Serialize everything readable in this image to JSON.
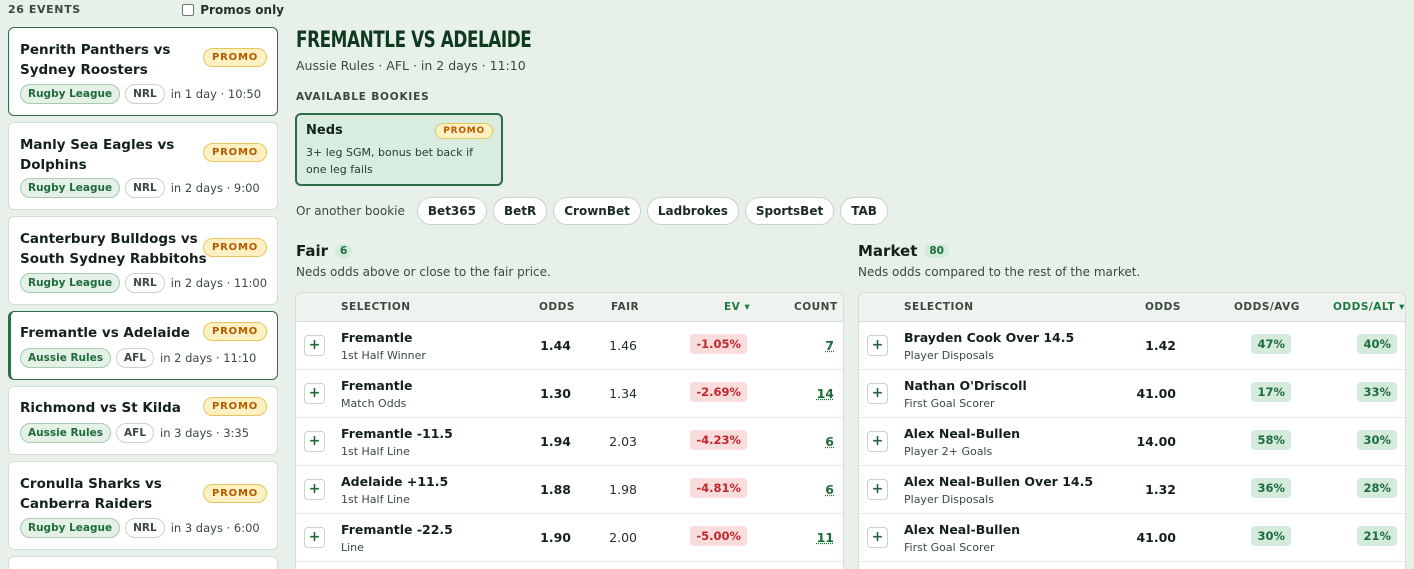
{
  "sidebar": {
    "events_count": "26 EVENTS",
    "promos_only_label": "Promos only",
    "events": [
      {
        "title": "Penrith Panthers vs Sydney Roosters",
        "promo": "PROMO",
        "sport": "Rugby League",
        "league": "NRL",
        "time": "in 1 day · 10:50"
      },
      {
        "title": "Manly Sea Eagles vs Dolphins",
        "promo": "PROMO",
        "sport": "Rugby League",
        "league": "NRL",
        "time": "in 2 days · 9:00"
      },
      {
        "title": "Canterbury Bulldogs vs South Sydney Rabbitohs",
        "promo": "PROMO",
        "sport": "Rugby League",
        "league": "NRL",
        "time": "in 2 days · 11:00"
      },
      {
        "title": "Fremantle vs Adelaide",
        "promo": "PROMO",
        "sport": "Aussie Rules",
        "league": "AFL",
        "time": "in 2 days · 11:10"
      },
      {
        "title": "Richmond vs St Kilda",
        "promo": "PROMO",
        "sport": "Aussie Rules",
        "league": "AFL",
        "time": "in 3 days · 3:35"
      },
      {
        "title": "Cronulla Sharks vs Canberra Raiders",
        "promo": "PROMO",
        "sport": "Rugby League",
        "league": "NRL",
        "time": "in 3 days · 6:00"
      }
    ]
  },
  "main": {
    "title": "FREMANTLE VS ADELAIDE",
    "subtitle": "Aussie Rules · AFL · in 2 days · 11:10",
    "available_label": "AVAILABLE BOOKIES",
    "bookie": {
      "name": "Neds",
      "promo": "PROMO",
      "desc": "3+ leg SGM, bonus bet back if one leg fails"
    },
    "other_label": "Or another bookie",
    "other_bookies": [
      "Bet365",
      "BetR",
      "CrownBet",
      "Ladbrokes",
      "SportsBet",
      "TAB"
    ]
  },
  "fair": {
    "title": "Fair",
    "count": "6",
    "subtitle": "Neds odds above or close to the fair price.",
    "headers": {
      "selection": "SELECTION",
      "odds": "ODDS",
      "fair": "FAIR",
      "ev": "EV ▾",
      "count": "COUNT"
    },
    "rows": [
      {
        "name": "Fremantle",
        "market": "1st Half Winner",
        "odds": "1.44",
        "fair": "1.46",
        "ev": "-1.05%",
        "count": "7"
      },
      {
        "name": "Fremantle",
        "market": "Match Odds",
        "odds": "1.30",
        "fair": "1.34",
        "ev": "-2.69%",
        "count": "14"
      },
      {
        "name": "Fremantle -11.5",
        "market": "1st Half Line",
        "odds": "1.94",
        "fair": "2.03",
        "ev": "-4.23%",
        "count": "6"
      },
      {
        "name": "Adelaide +11.5",
        "market": "1st Half Line",
        "odds": "1.88",
        "fair": "1.98",
        "ev": "-4.81%",
        "count": "6"
      },
      {
        "name": "Fremantle -22.5",
        "market": "Line",
        "odds": "1.90",
        "fair": "2.00",
        "ev": "-5.00%",
        "count": "11"
      }
    ]
  },
  "market": {
    "title": "Market",
    "count": "80",
    "subtitle": "Neds odds compared to the rest of the market.",
    "headers": {
      "selection": "SELECTION",
      "odds": "ODDS",
      "avg": "ODDS/AVG",
      "alt": "ODDS/ALT ▾"
    },
    "rows": [
      {
        "name": "Brayden Cook Over 14.5",
        "market": "Player Disposals",
        "odds": "1.42",
        "avg": "47%",
        "alt": "40%"
      },
      {
        "name": "Nathan O'Driscoll",
        "market": "First Goal Scorer",
        "odds": "41.00",
        "avg": "17%",
        "alt": "33%"
      },
      {
        "name": "Alex Neal-Bullen",
        "market": "Player 2+ Goals",
        "odds": "14.00",
        "avg": "58%",
        "alt": "30%"
      },
      {
        "name": "Alex Neal-Bullen Over 14.5",
        "market": "Player Disposals",
        "odds": "1.32",
        "avg": "36%",
        "alt": "28%"
      },
      {
        "name": "Alex Neal-Bullen",
        "market": "First Goal Scorer",
        "odds": "41.00",
        "avg": "30%",
        "alt": "21%"
      }
    ],
    "plus": "+"
  }
}
